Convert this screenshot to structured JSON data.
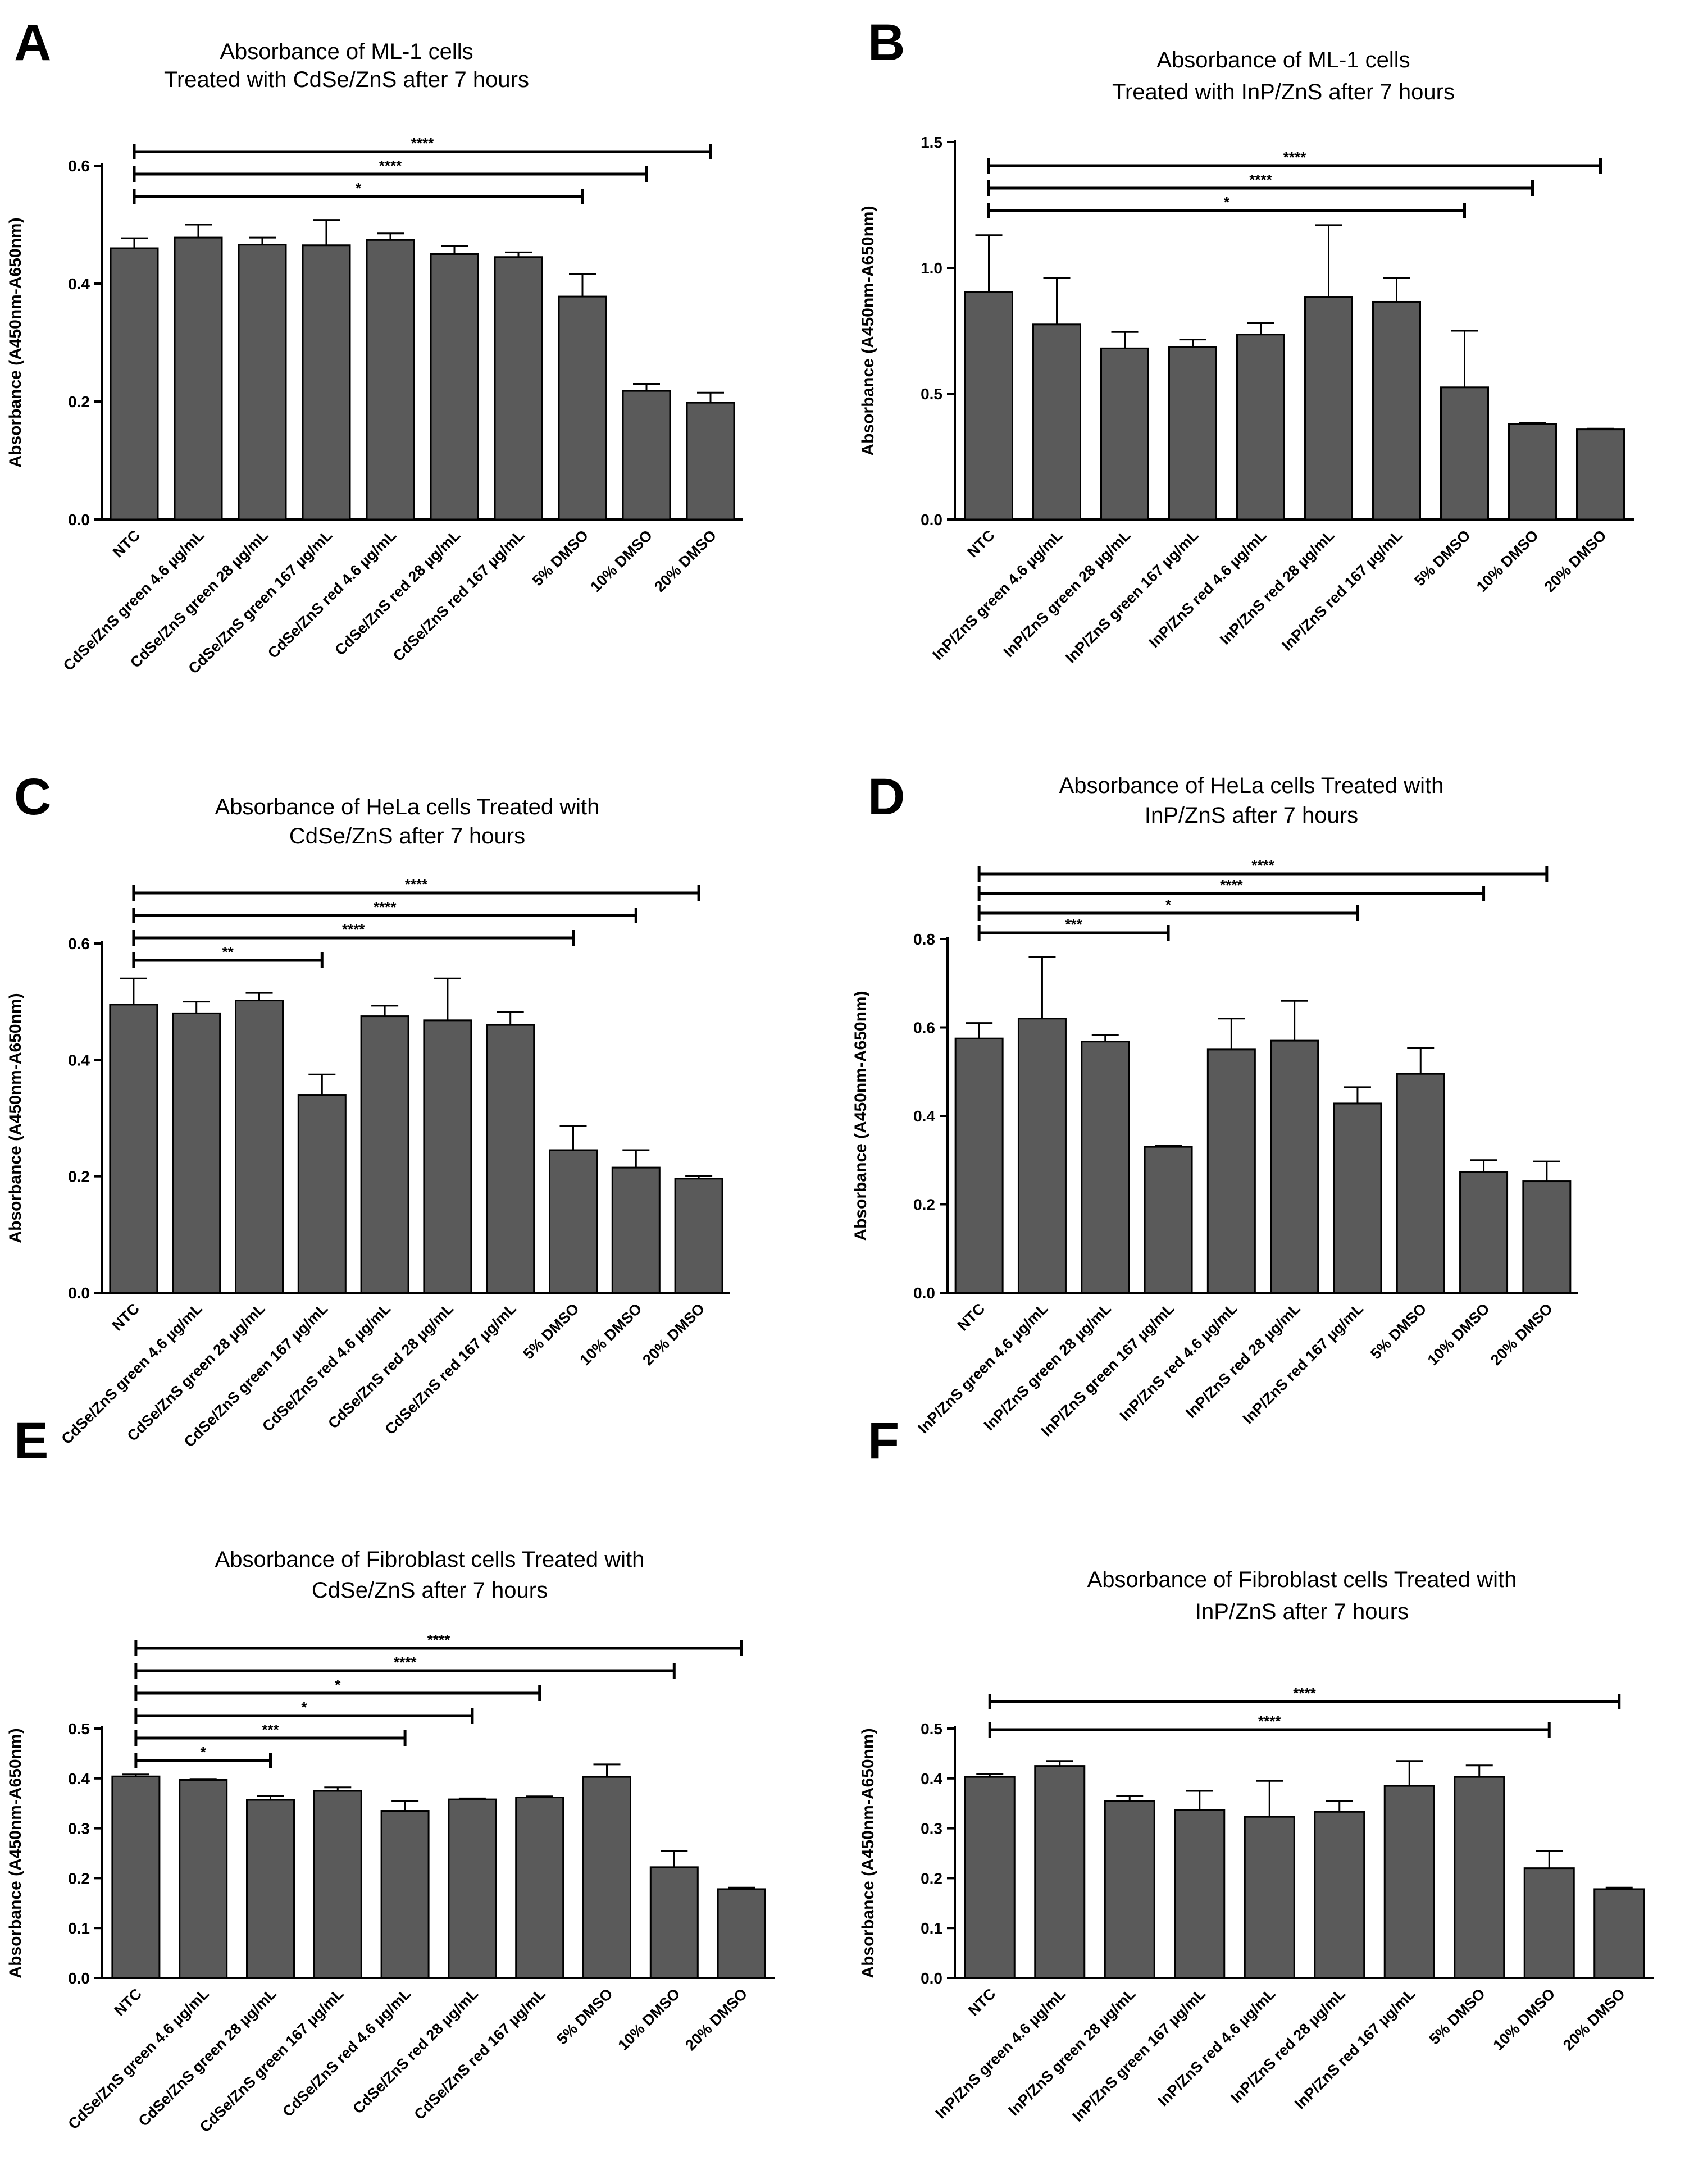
{
  "colors": {
    "bar_fill": "#5a5a5a",
    "bar_stroke": "#000000",
    "axis": "#000000",
    "text": "#000000"
  },
  "chart_data": [
    {
      "panel": "A",
      "type": "bar",
      "title": [
        "Absorbance of ML-1 cells",
        "Treated with CdSe/ZnS after 7 hours"
      ],
      "ylabel": "Absorbance (A450nm-A650nm)",
      "xlabel": "",
      "ylim": [
        0,
        0.6
      ],
      "yticks": [
        0.0,
        0.2,
        0.4,
        0.6
      ],
      "categories": [
        "NTC",
        "CdSe/ZnS green 4.6 µg/mL",
        "CdSe/ZnS green 28 µg/mL",
        "CdSe/ZnS green 167 µg/mL",
        "CdSe/ZnS red 4.6 µg/mL",
        "CdSe/ZnS red 28 µg/mL",
        "CdSe/ZnS red 167 µg/mL",
        "5% DMSO",
        "10% DMSO",
        "20% DMSO"
      ],
      "values": [
        0.46,
        0.478,
        0.466,
        0.465,
        0.474,
        0.45,
        0.445,
        0.378,
        0.218,
        0.198
      ],
      "errors": [
        0.017,
        0.022,
        0.012,
        0.043,
        0.011,
        0.014,
        0.008,
        0.038,
        0.012,
        0.017
      ],
      "significance": [
        {
          "from": 0,
          "to": 9,
          "label": "****"
        },
        {
          "from": 0,
          "to": 8,
          "label": "****"
        },
        {
          "from": 0,
          "to": 7,
          "label": "*"
        }
      ]
    },
    {
      "panel": "B",
      "type": "bar",
      "title": [
        "Absorbance of ML-1 cells",
        "Treated with InP/ZnS after 7 hours"
      ],
      "ylabel": "Absorbance (A450nm-A650nm)",
      "xlabel": "",
      "ylim": [
        0,
        1.5
      ],
      "yticks": [
        0.0,
        0.5,
        1.0,
        1.5
      ],
      "categories": [
        "NTC",
        "InP/ZnS green 4.6 µg/mL",
        "InP/ZnS green 28 µg/mL",
        "InP/ZnS green 167 µg/mL",
        "InP/ZnS red 4.6 µg/mL",
        "InP/ZnS red 28 µg/mL",
        "InP/ZnS red 167 µg/mL",
        "5% DMSO",
        "10% DMSO",
        "20% DMSO"
      ],
      "values": [
        0.905,
        0.775,
        0.68,
        0.685,
        0.735,
        0.885,
        0.865,
        0.525,
        0.38,
        0.358
      ],
      "errors": [
        0.225,
        0.185,
        0.065,
        0.03,
        0.045,
        0.285,
        0.095,
        0.225,
        0.003,
        0.003
      ],
      "significance": [
        {
          "from": 0,
          "to": 9,
          "label": "****"
        },
        {
          "from": 0,
          "to": 8,
          "label": "****"
        },
        {
          "from": 0,
          "to": 7,
          "label": "*"
        }
      ]
    },
    {
      "panel": "C",
      "type": "bar",
      "title": [
        "Absorbance of HeLa cells Treated with",
        "CdSe/ZnS after 7 hours"
      ],
      "ylabel": "Absorbance (A450nm-A650nm)",
      "xlabel": "",
      "ylim": [
        0,
        0.6
      ],
      "yticks": [
        0.0,
        0.2,
        0.4,
        0.6
      ],
      "categories": [
        "NTC",
        "CdSe/ZnS green 4.6 µg/mL",
        "CdSe/ZnS green 28 µg/mL",
        "CdSe/ZnS green 167 µg/mL",
        "CdSe/ZnS red 4.6 µg/mL",
        "CdSe/ZnS red 28 µg/mL",
        "CdSe/ZnS red 167 µg/mL",
        "5% DMSO",
        "10% DMSO",
        "20% DMSO"
      ],
      "values": [
        0.495,
        0.48,
        0.502,
        0.34,
        0.475,
        0.468,
        0.46,
        0.245,
        0.215,
        0.196
      ],
      "errors": [
        0.045,
        0.02,
        0.013,
        0.035,
        0.018,
        0.072,
        0.022,
        0.042,
        0.03,
        0.005
      ],
      "significance": [
        {
          "from": 0,
          "to": 9,
          "label": "****"
        },
        {
          "from": 0,
          "to": 8,
          "label": "****"
        },
        {
          "from": 0,
          "to": 7,
          "label": "****"
        },
        {
          "from": 0,
          "to": 3,
          "label": "**"
        }
      ]
    },
    {
      "panel": "D",
      "type": "bar",
      "title": [
        "Absorbance of HeLa cells Treated with",
        "InP/ZnS after 7 hours"
      ],
      "ylabel": "Absorbance (A450nm-A650nm)",
      "xlabel": "",
      "ylim": [
        0,
        0.8
      ],
      "yticks": [
        0.0,
        0.2,
        0.4,
        0.6,
        0.8
      ],
      "categories": [
        "NTC",
        "InP/ZnS green 4.6 µg/mL",
        "InP/ZnS green 28 µg/mL",
        "InP/ZnS green 167 µg/mL",
        "InP/ZnS red 4.6 µg/mL",
        "InP/ZnS red 28 µg/mL",
        "InP/ZnS red 167 µg/mL",
        "5% DMSO",
        "10% DMSO",
        "20% DMSO"
      ],
      "values": [
        0.575,
        0.62,
        0.568,
        0.33,
        0.55,
        0.57,
        0.428,
        0.495,
        0.273,
        0.252
      ],
      "errors": [
        0.035,
        0.14,
        0.015,
        0.003,
        0.07,
        0.09,
        0.037,
        0.058,
        0.027,
        0.045
      ],
      "significance": [
        {
          "from": 0,
          "to": 9,
          "label": "****"
        },
        {
          "from": 0,
          "to": 8,
          "label": "****"
        },
        {
          "from": 0,
          "to": 6,
          "label": "*"
        },
        {
          "from": 0,
          "to": 3,
          "label": "***"
        }
      ]
    },
    {
      "panel": "E",
      "type": "bar",
      "title": [
        "Absorbance of Fibroblast cells Treated with",
        "CdSe/ZnS after 7 hours"
      ],
      "ylabel": "Absorbance (A450nm-A650nm)",
      "xlabel": "",
      "ylim": [
        0,
        0.5
      ],
      "yticks": [
        0.0,
        0.1,
        0.2,
        0.3,
        0.4,
        0.5
      ],
      "categories": [
        "NTC",
        "CdSe/ZnS green 4.6 µg/mL",
        "CdSe/ZnS green 28 µg/mL",
        "CdSe/ZnS green 167 µg/mL",
        "CdSe/ZnS red 4.6 µg/mL",
        "CdSe/ZnS red 28 µg/mL",
        "CdSe/ZnS red 167 µg/mL",
        "5% DMSO",
        "10% DMSO",
        "20% DMSO"
      ],
      "values": [
        0.404,
        0.397,
        0.357,
        0.375,
        0.335,
        0.358,
        0.362,
        0.403,
        0.222,
        0.178
      ],
      "errors": [
        0.004,
        0.002,
        0.008,
        0.007,
        0.02,
        0.002,
        0.002,
        0.025,
        0.033,
        0.003
      ],
      "significance": [
        {
          "from": 0,
          "to": 9,
          "label": "****"
        },
        {
          "from": 0,
          "to": 8,
          "label": "****"
        },
        {
          "from": 0,
          "to": 6,
          "label": "*"
        },
        {
          "from": 0,
          "to": 5,
          "label": "*"
        },
        {
          "from": 0,
          "to": 4,
          "label": "***"
        },
        {
          "from": 0,
          "to": 2,
          "label": "*"
        }
      ]
    },
    {
      "panel": "F",
      "type": "bar",
      "title": [
        "Absorbance of Fibroblast cells Treated with",
        "InP/ZnS after 7 hours"
      ],
      "ylabel": "Absorbance (A450nm-A650nm)",
      "xlabel": "",
      "ylim": [
        0,
        0.5
      ],
      "yticks": [
        0.0,
        0.1,
        0.2,
        0.3,
        0.4,
        0.5
      ],
      "categories": [
        "NTC",
        "InP/ZnS green 4.6 µg/mL",
        "InP/ZnS green 28 µg/mL",
        "InP/ZnS green 167 µg/mL",
        "InP/ZnS red 4.6 µg/mL",
        "InP/ZnS red 28 µg/mL",
        "InP/ZnS red 167 µg/mL",
        "5% DMSO",
        "10% DMSO",
        "20% DMSO"
      ],
      "values": [
        0.403,
        0.425,
        0.355,
        0.337,
        0.323,
        0.333,
        0.385,
        0.403,
        0.22,
        0.178
      ],
      "errors": [
        0.006,
        0.01,
        0.01,
        0.038,
        0.072,
        0.022,
        0.05,
        0.023,
        0.035,
        0.003
      ],
      "significance": [
        {
          "from": 0,
          "to": 9,
          "label": "****"
        },
        {
          "from": 0,
          "to": 8,
          "label": "****"
        }
      ]
    }
  ]
}
